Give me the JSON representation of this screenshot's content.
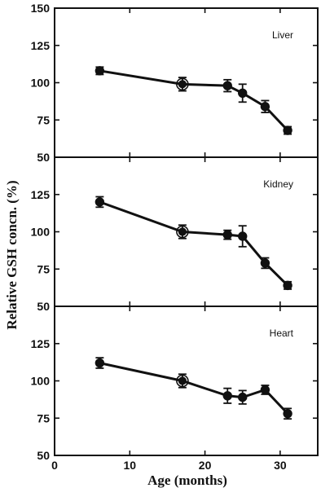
{
  "chart_data": {
    "type": "line",
    "xlabel": "Age (months)",
    "ylabel": "Relative GSH concn. (%)",
    "xlim": [
      0,
      35
    ],
    "x_ticks": [
      0,
      10,
      20,
      30
    ],
    "ylim": [
      50,
      150
    ],
    "panels": [
      {
        "label": "Liver",
        "y_ticks": [
          50,
          75,
          100,
          125,
          150
        ],
        "series": [
          {
            "x": [
              6,
              17,
              23,
              25,
              28,
              31
            ],
            "y": [
              108,
              99,
              98,
              93,
              84,
              68
            ],
            "error": [
              2.5,
              4.5,
              4,
              6,
              4,
              2.5
            ]
          }
        ]
      },
      {
        "label": "Kidney",
        "y_ticks": [
          50,
          75,
          100,
          125
        ],
        "series": [
          {
            "x": [
              6,
              17,
              23,
              25,
              28,
              31
            ],
            "y": [
              120,
              100,
              98,
              97,
              79,
              64
            ],
            "error": [
              3.5,
              4.5,
              3,
              7,
              3.5,
              2.5
            ]
          }
        ]
      },
      {
        "label": "Heart",
        "y_ticks": [
          50,
          75,
          100,
          125
        ],
        "series": [
          {
            "x": [
              6,
              17,
              23,
              25,
              28,
              31
            ],
            "y": [
              112,
              100,
              90,
              89,
              94,
              78
            ],
            "error": [
              3.5,
              4.5,
              5,
              4.5,
              3,
              3.5
            ]
          }
        ]
      }
    ],
    "reference_point_x": 17,
    "grid": false,
    "legend": "none"
  }
}
